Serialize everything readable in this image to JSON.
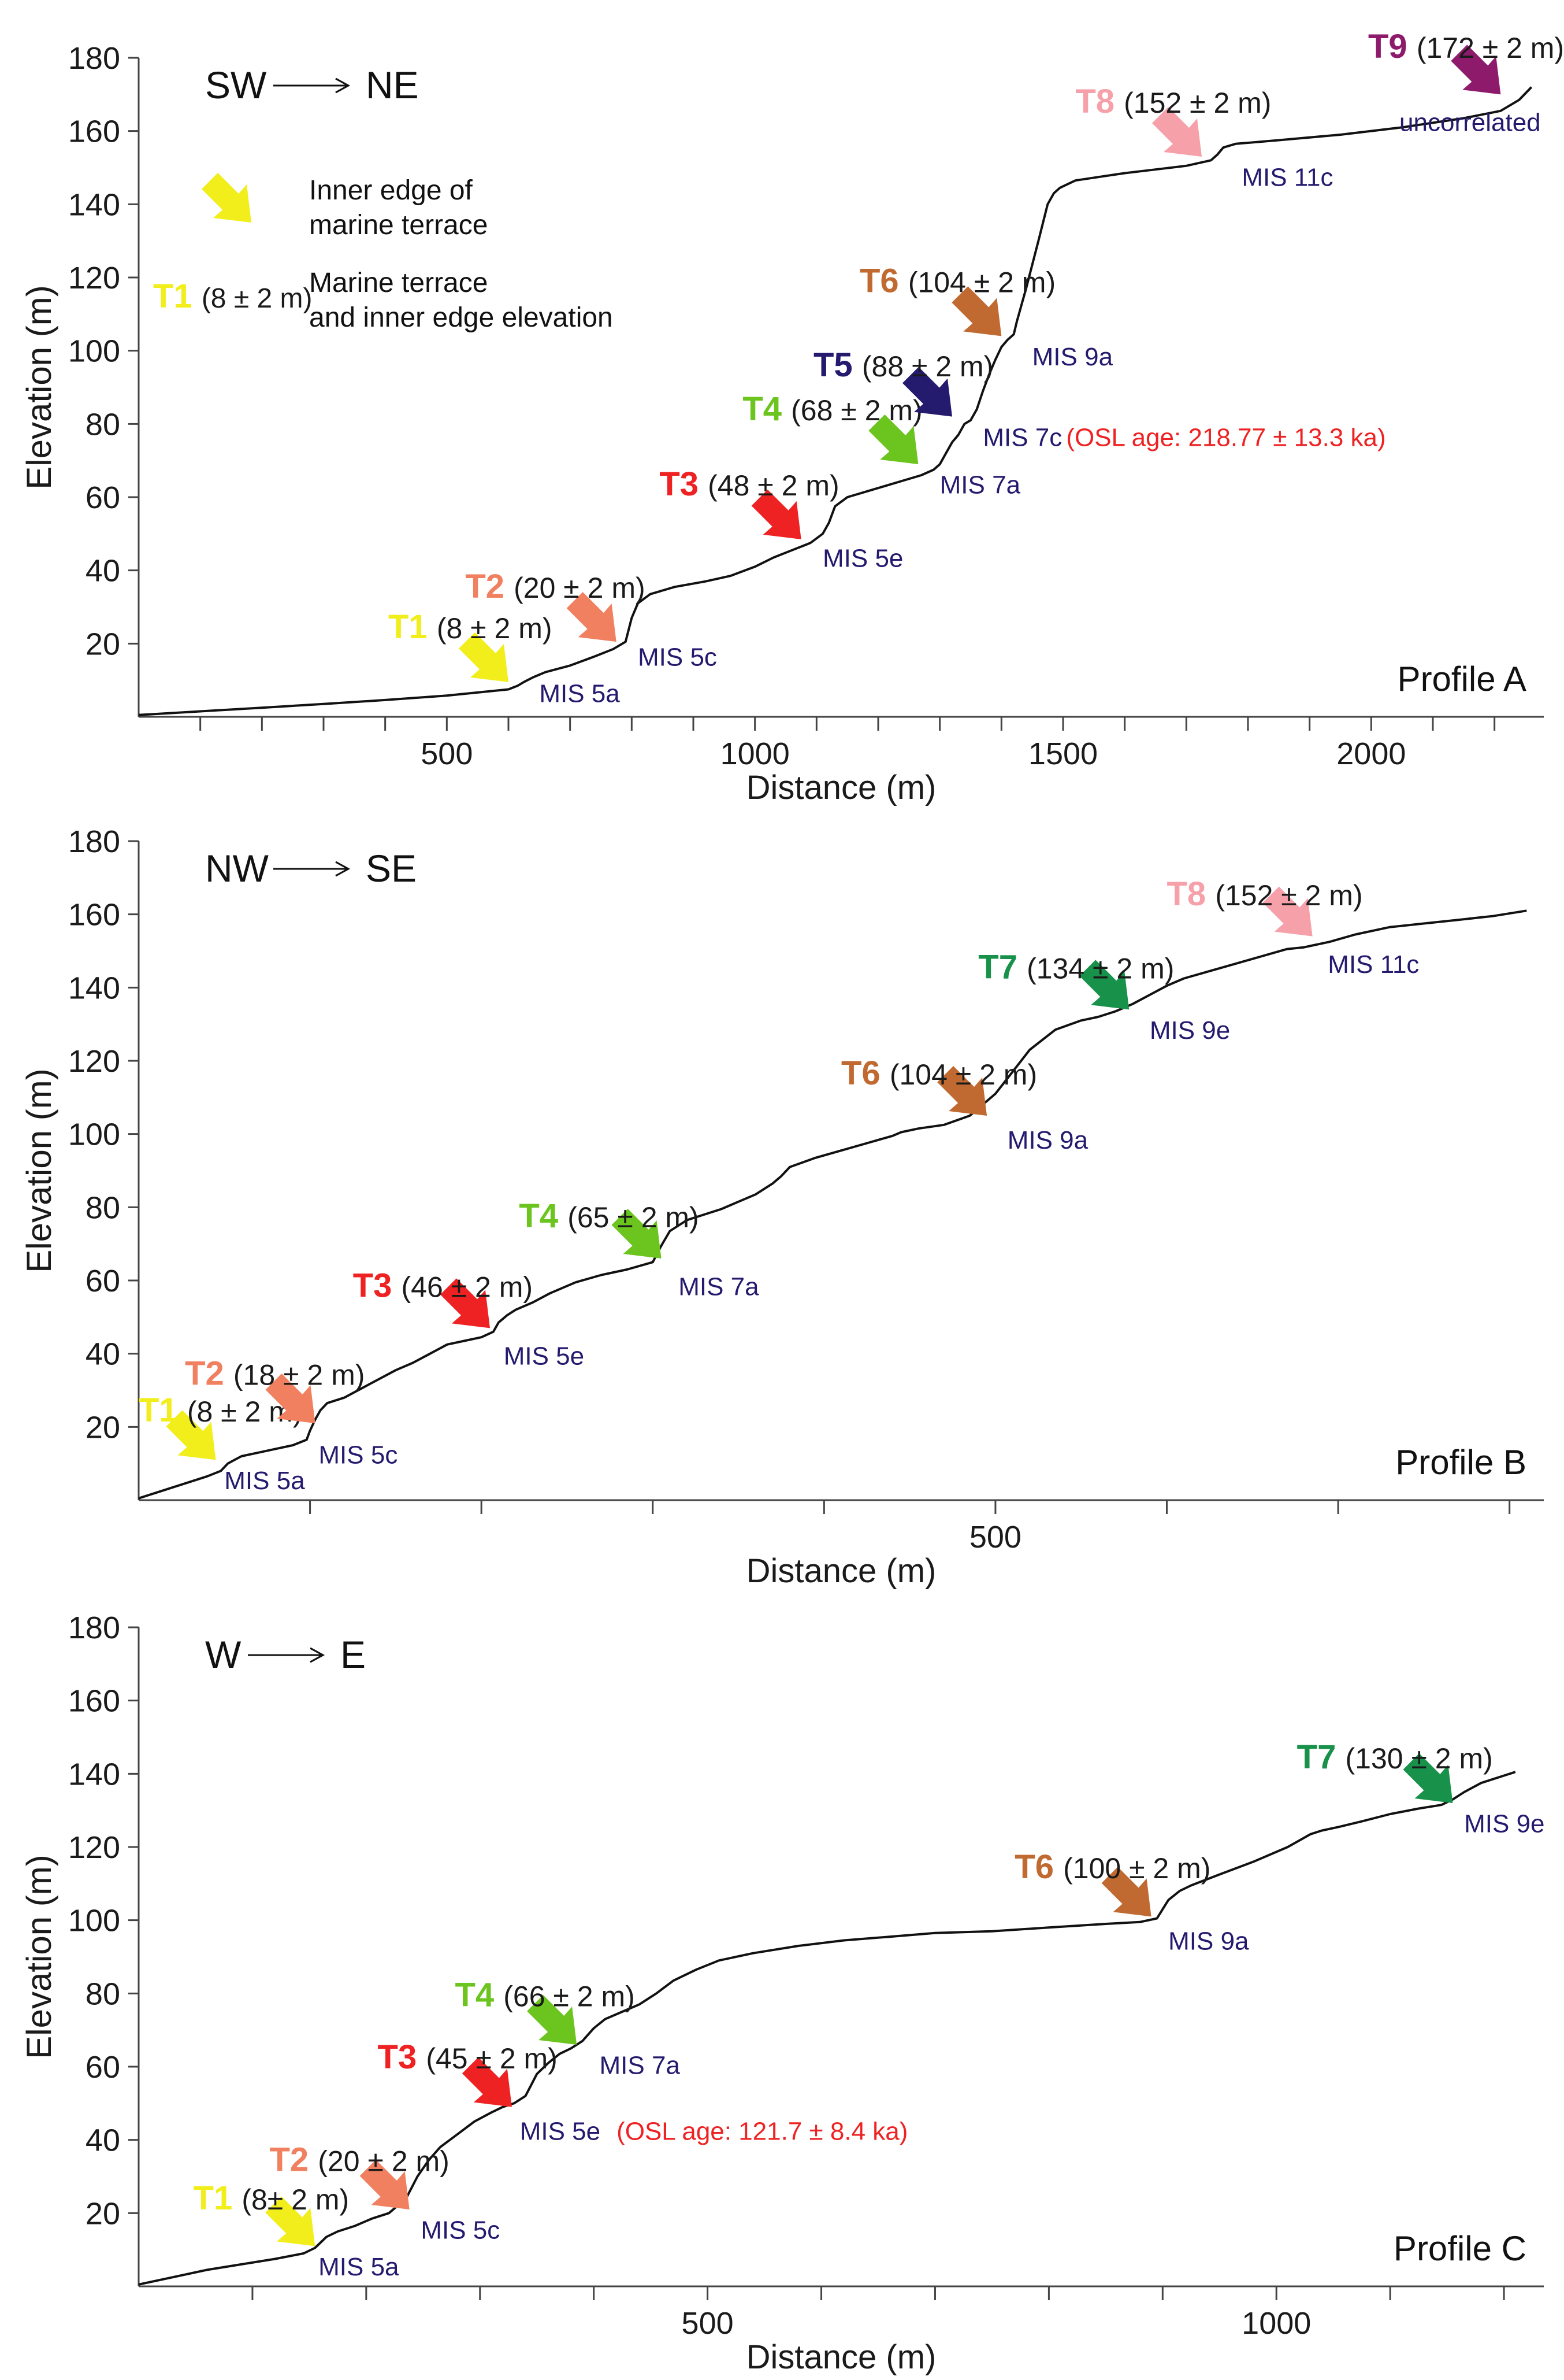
{
  "chart_data": [
    {
      "type": "line",
      "panel_label": "Profile A",
      "direction": {
        "from": "SW",
        "to": "NE"
      },
      "xlabel": "Distance (m)",
      "ylabel": "Elevation (m)",
      "xlim": [
        0,
        2280
      ],
      "ylim": [
        0,
        180
      ],
      "xticks_labeled": [
        500,
        1000,
        1500,
        2000
      ],
      "xticks_minor": [
        100,
        200,
        300,
        400,
        500,
        600,
        700,
        800,
        900,
        1000,
        1100,
        1200,
        1300,
        1400,
        1500,
        1600,
        1700,
        1800,
        1900,
        2000,
        2100,
        2200
      ],
      "yticks": [
        20,
        40,
        60,
        80,
        100,
        120,
        140,
        160,
        180
      ],
      "grid": false,
      "legend": {
        "placement": "top-left",
        "arrow_label": "Inner edge of",
        "arrow_label_2": "marine terrace",
        "sample_name": "T1",
        "sample_value": "(8 ± 2 m)",
        "sample_text": "Marine terrace",
        "sample_text_2": "and inner edge elevation",
        "sample_color": "#f2ee1c"
      },
      "profile": {
        "x": [
          0,
          100,
          200,
          300,
          400,
          500,
          600,
          615,
          625,
          640,
          660,
          700,
          740,
          770,
          790,
          800,
          810,
          830,
          870,
          920,
          960,
          1000,
          1030,
          1060,
          1090,
          1110,
          1120,
          1130,
          1150,
          1200,
          1240,
          1270,
          1290,
          1300,
          1310,
          1320,
          1330,
          1340,
          1350,
          1360,
          1370,
          1380,
          1390,
          1400,
          1410,
          1420,
          1425,
          1440,
          1460,
          1475,
          1485,
          1495,
          1520,
          1560,
          1600,
          1650,
          1700,
          1740,
          1750,
          1760,
          1780,
          1850,
          1950,
          2050,
          2150,
          2210,
          2240,
          2260
        ],
        "y": [
          0.5,
          1.5,
          2.5,
          3.5,
          4.6,
          5.8,
          7.5,
          8.5,
          9.5,
          10.8,
          12.2,
          14.0,
          16.5,
          18.5,
          20.5,
          27.0,
          31.0,
          33.5,
          35.5,
          37.0,
          38.5,
          41.0,
          43.5,
          45.5,
          47.5,
          50.0,
          53.0,
          57.5,
          60.0,
          62.5,
          64.5,
          66.0,
          67.5,
          69.0,
          72.0,
          75.0,
          77.0,
          80.0,
          81.0,
          84.0,
          89.0,
          93.5,
          97.5,
          101.0,
          103.0,
          104.5,
          108.0,
          117.0,
          130.0,
          140.0,
          143.0,
          144.5,
          146.5,
          147.5,
          148.5,
          149.5,
          150.5,
          152.0,
          153.5,
          155.5,
          156.5,
          157.5,
          159.0,
          161.0,
          163.5,
          165.5,
          168.5,
          172.0
        ]
      },
      "terraces": [
        {
          "name": "T1",
          "value": "(8 ± 2 m)",
          "mis": "MIS 5a",
          "color": "#f2ee1c",
          "arrow_x": 600,
          "arrow_y": 9.5,
          "label_x": 405,
          "label_y": 21.5,
          "mis_x": 650,
          "mis_y": 4,
          "mis_anchor": "start"
        },
        {
          "name": "T2",
          "value": "(20 ± 2 m)",
          "mis": "MIS 5c",
          "color": "#f08060",
          "arrow_x": 775,
          "arrow_y": 20.5,
          "label_x": 530,
          "label_y": 32.5,
          "mis_x": 810,
          "mis_y": 14,
          "mis_anchor": "start"
        },
        {
          "name": "T3",
          "value": "(48 ± 2 m)",
          "mis": "MIS 5e",
          "color": "#ee2222",
          "arrow_x": 1075,
          "arrow_y": 48.5,
          "label_x": 845,
          "label_y": 60.5,
          "mis_x": 1110,
          "mis_y": 41,
          "mis_anchor": "start"
        },
        {
          "name": "T4",
          "value": "(68 ± 2 m)",
          "mis": "MIS 7a",
          "color": "#6cc41e",
          "arrow_x": 1265,
          "arrow_y": 69,
          "label_x": 980,
          "label_y": 81,
          "mis_x": 1300,
          "mis_y": 61,
          "mis_anchor": "start"
        },
        {
          "name": "T5",
          "value": "(88 ± 2 m)",
          "mis": "MIS 7c",
          "color": "#241a6e",
          "arrow_x": 1320,
          "arrow_y": 82,
          "label_x": 1095,
          "label_y": 93,
          "mis_x": 1370,
          "mis_y": 74,
          "mis_anchor": "start"
        },
        {
          "name": "T6",
          "value": "(104 ± 2 m)",
          "mis": "MIS 9a",
          "color": "#c06a32",
          "arrow_x": 1400,
          "arrow_y": 104,
          "label_x": 1170,
          "label_y": 116,
          "mis_x": 1450,
          "mis_y": 96,
          "mis_anchor": "start"
        },
        {
          "name": "T8",
          "value": "(152 ± 2 m)",
          "mis": "MIS 11c",
          "color": "#f6a0aa",
          "arrow_x": 1725,
          "arrow_y": 153,
          "label_x": 1520,
          "label_y": 165,
          "mis_x": 1790,
          "mis_y": 145,
          "mis_anchor": "start"
        },
        {
          "name": "T9",
          "value": "(172 ± 2 m)",
          "mis": "uncorrelated",
          "color": "#8e1a6c",
          "arrow_x": 2210,
          "arrow_y": 170,
          "label_x": 1995,
          "label_y": 180,
          "mis_x": 2275,
          "mis_y": 160,
          "mis_anchor": "end"
        }
      ],
      "annotations": [
        {
          "text": "(OSL age: 218.77 ± 13.3 ka)",
          "color": "#ee2222",
          "x": 1505,
          "y": 74
        }
      ]
    },
    {
      "type": "line",
      "panel_label": "Profile B",
      "direction": {
        "from": "NW",
        "to": "SE"
      },
      "xlabel": "Distance (m)",
      "ylabel": "Elevation (m)",
      "xlim": [
        0,
        820
      ],
      "ylim": [
        0,
        180
      ],
      "xticks_labeled": [
        500
      ],
      "xticks_minor": [
        100,
        200,
        300,
        400,
        500,
        600,
        700,
        800
      ],
      "yticks": [
        20,
        40,
        60,
        80,
        100,
        120,
        140,
        160,
        180
      ],
      "grid": false,
      "profile": {
        "x": [
          0,
          10,
          20,
          30,
          40,
          48,
          52,
          56,
          60,
          70,
          80,
          90,
          98,
          100,
          103,
          106,
          110,
          120,
          130,
          140,
          150,
          160,
          170,
          180,
          190,
          200,
          207,
          210,
          215,
          220,
          230,
          240,
          255,
          270,
          285,
          300,
          305,
          310,
          320,
          330,
          340,
          350,
          360,
          365,
          370,
          375,
          380,
          395,
          410,
          425,
          440,
          445,
          455,
          470,
          485,
          500,
          510,
          520,
          535,
          550,
          560,
          570,
          580,
          590,
          600,
          610,
          625,
          640,
          655,
          670,
          680,
          685,
          695,
          710,
          730,
          750,
          770,
          790,
          810
        ],
        "y": [
          0.5,
          2.0,
          3.5,
          5.0,
          6.5,
          8.0,
          10.0,
          11.0,
          12.0,
          13.0,
          14.0,
          15.0,
          16.5,
          19.0,
          22.0,
          24.5,
          26.5,
          28.0,
          30.5,
          33.0,
          35.5,
          37.5,
          40.0,
          42.5,
          43.5,
          44.5,
          46.0,
          48.5,
          50.5,
          52.0,
          54.0,
          56.5,
          59.5,
          61.5,
          63.0,
          65.0,
          69.5,
          73.5,
          76.5,
          78.0,
          79.5,
          81.5,
          83.5,
          85.0,
          86.5,
          88.5,
          91.0,
          93.5,
          95.5,
          97.5,
          99.5,
          100.5,
          101.5,
          102.5,
          105.0,
          111.0,
          117.0,
          123.0,
          128.5,
          131.0,
          132.0,
          133.5,
          135.5,
          138.0,
          140.5,
          142.5,
          144.5,
          146.5,
          148.5,
          150.5,
          151.0,
          151.5,
          152.5,
          154.5,
          156.5,
          157.5,
          158.5,
          159.5,
          161.0
        ]
      },
      "terraces": [
        {
          "name": "T1",
          "value": "(8 ± 2 m)",
          "mis": "MIS 5a",
          "color": "#f2ee1c",
          "arrow_x": 45,
          "arrow_y": 11,
          "label_x": 0,
          "label_y": 21.5,
          "mis_x": 50,
          "mis_y": 3,
          "mis_anchor": "start"
        },
        {
          "name": "T2",
          "value": "(18 ± 2 m)",
          "mis": "MIS 5c",
          "color": "#f08060",
          "arrow_x": 103,
          "arrow_y": 21,
          "label_x": 27,
          "label_y": 31.5,
          "mis_x": 105,
          "mis_y": 10,
          "mis_anchor": "start"
        },
        {
          "name": "T3",
          "value": "(46 ± 2 m)",
          "mis": "MIS 5e",
          "color": "#ee2222",
          "arrow_x": 205,
          "arrow_y": 47,
          "label_x": 125,
          "label_y": 55.5,
          "mis_x": 213,
          "mis_y": 37,
          "mis_anchor": "start"
        },
        {
          "name": "T4",
          "value": "(65 ± 2 m)",
          "mis": "MIS 7a",
          "color": "#6cc41e",
          "arrow_x": 305,
          "arrow_y": 66,
          "label_x": 222,
          "label_y": 74.5,
          "mis_x": 315,
          "mis_y": 56,
          "mis_anchor": "start"
        },
        {
          "name": "T6",
          "value": "(104 ± 2 m)",
          "mis": "MIS 9a",
          "color": "#c06a32",
          "arrow_x": 495,
          "arrow_y": 105,
          "label_x": 410,
          "label_y": 113.5,
          "mis_x": 507,
          "mis_y": 96,
          "mis_anchor": "start"
        },
        {
          "name": "T7",
          "value": "(134 ± 2 m)",
          "mis": "MIS 9e",
          "color": "#18924a",
          "arrow_x": 578,
          "arrow_y": 134,
          "label_x": 490,
          "label_y": 142.5,
          "mis_x": 590,
          "mis_y": 126,
          "mis_anchor": "start"
        },
        {
          "name": "T8",
          "value": "(152 ± 2 m)",
          "mis": "MIS 11c",
          "color": "#f6a0aa",
          "arrow_x": 685,
          "arrow_y": 154,
          "label_x": 600,
          "label_y": 162.5,
          "mis_x": 694,
          "mis_y": 144,
          "mis_anchor": "start"
        }
      ],
      "annotations": []
    },
    {
      "type": "line",
      "panel_label": "Profile C",
      "direction": {
        "from": "W",
        "to": "E"
      },
      "xlabel": "Distance (m)",
      "ylabel": "Elevation (m)",
      "xlim": [
        0,
        1235
      ],
      "ylim": [
        0,
        180
      ],
      "xticks_labeled": [
        500,
        1000
      ],
      "xticks_minor": [
        100,
        200,
        300,
        400,
        500,
        600,
        700,
        800,
        900,
        1000,
        1100,
        1200
      ],
      "yticks": [
        20,
        40,
        60,
        80,
        100,
        120,
        140,
        160,
        180
      ],
      "grid": false,
      "profile": {
        "x": [
          0,
          30,
          60,
          90,
          120,
          145,
          155,
          160,
          165,
          175,
          190,
          205,
          220,
          235,
          245,
          255,
          265,
          280,
          295,
          310,
          320,
          330,
          340,
          345,
          350,
          360,
          370,
          380,
          390,
          400,
          410,
          425,
          440,
          455,
          470,
          490,
          510,
          540,
          580,
          620,
          660,
          700,
          750,
          800,
          850,
          880,
          895,
          900,
          905,
          915,
          925,
          950,
          980,
          1010,
          1030,
          1040,
          1055,
          1075,
          1100,
          1125,
          1145,
          1155,
          1165,
          1180,
          1200,
          1210
        ],
        "y": [
          0.5,
          2.5,
          4.5,
          6.0,
          7.5,
          9.0,
          10.5,
          12.0,
          13.5,
          15.0,
          16.5,
          18.5,
          20.0,
          24.0,
          30.0,
          34.5,
          38.0,
          41.5,
          45.0,
          47.5,
          49.0,
          50.0,
          52.0,
          55.0,
          58.0,
          61.0,
          63.5,
          65.0,
          67.0,
          70.5,
          73.0,
          75.0,
          77.0,
          80.0,
          83.5,
          86.5,
          89.0,
          91.0,
          93.0,
          94.5,
          95.5,
          96.5,
          97.0,
          98.0,
          99.0,
          99.5,
          100.5,
          103.0,
          105.5,
          108.0,
          109.5,
          112.5,
          116.0,
          120.0,
          123.5,
          124.5,
          125.5,
          127.0,
          129.0,
          130.5,
          131.5,
          133.0,
          135.0,
          137.5,
          139.5,
          140.5
        ]
      },
      "terraces": [
        {
          "name": "T1",
          "value": "(8±  2 m)",
          "mis": "MIS 5a",
          "color": "#f2ee1c",
          "arrow_x": 155,
          "arrow_y": 11,
          "label_x": 48,
          "label_y": 21,
          "mis_x": 158,
          "mis_y": 3,
          "mis_anchor": "start"
        },
        {
          "name": "T2",
          "value": "(20 ± 2 m)",
          "mis": "MIS 5c",
          "color": "#f08060",
          "arrow_x": 238,
          "arrow_y": 21,
          "label_x": 115,
          "label_y": 31.5,
          "mis_x": 248,
          "mis_y": 13,
          "mis_anchor": "start"
        },
        {
          "name": "T3",
          "value": "(45 ± 2 m)",
          "mis": "MIS 5e",
          "color": "#ee2222",
          "arrow_x": 328,
          "arrow_y": 49,
          "label_x": 210,
          "label_y": 59.5,
          "mis_x": 335,
          "mis_y": 40,
          "mis_anchor": "start"
        },
        {
          "name": "T4",
          "value": "(66 ± 2 m)",
          "mis": "MIS 7a",
          "color": "#6cc41e",
          "arrow_x": 385,
          "arrow_y": 66,
          "label_x": 278,
          "label_y": 76.5,
          "mis_x": 405,
          "mis_y": 58,
          "mis_anchor": "start"
        },
        {
          "name": "T6",
          "value": "(100 ± 2 m)",
          "mis": "MIS 9a",
          "color": "#c06a32",
          "arrow_x": 890,
          "arrow_y": 101,
          "label_x": 770,
          "label_y": 111.5,
          "mis_x": 905,
          "mis_y": 92,
          "mis_anchor": "start"
        },
        {
          "name": "T7",
          "value": "(130 ± 2 m)",
          "mis": "MIS 9e",
          "color": "#18924a",
          "arrow_x": 1155,
          "arrow_y": 132,
          "label_x": 1018,
          "label_y": 141.5,
          "mis_x": 1165,
          "mis_y": 124,
          "mis_anchor": "start"
        }
      ],
      "annotations": [
        {
          "text": "(OSL age: 121.7 ± 8.4 ka)",
          "color": "#ee2222",
          "x": 420,
          "y": 40
        }
      ]
    }
  ]
}
